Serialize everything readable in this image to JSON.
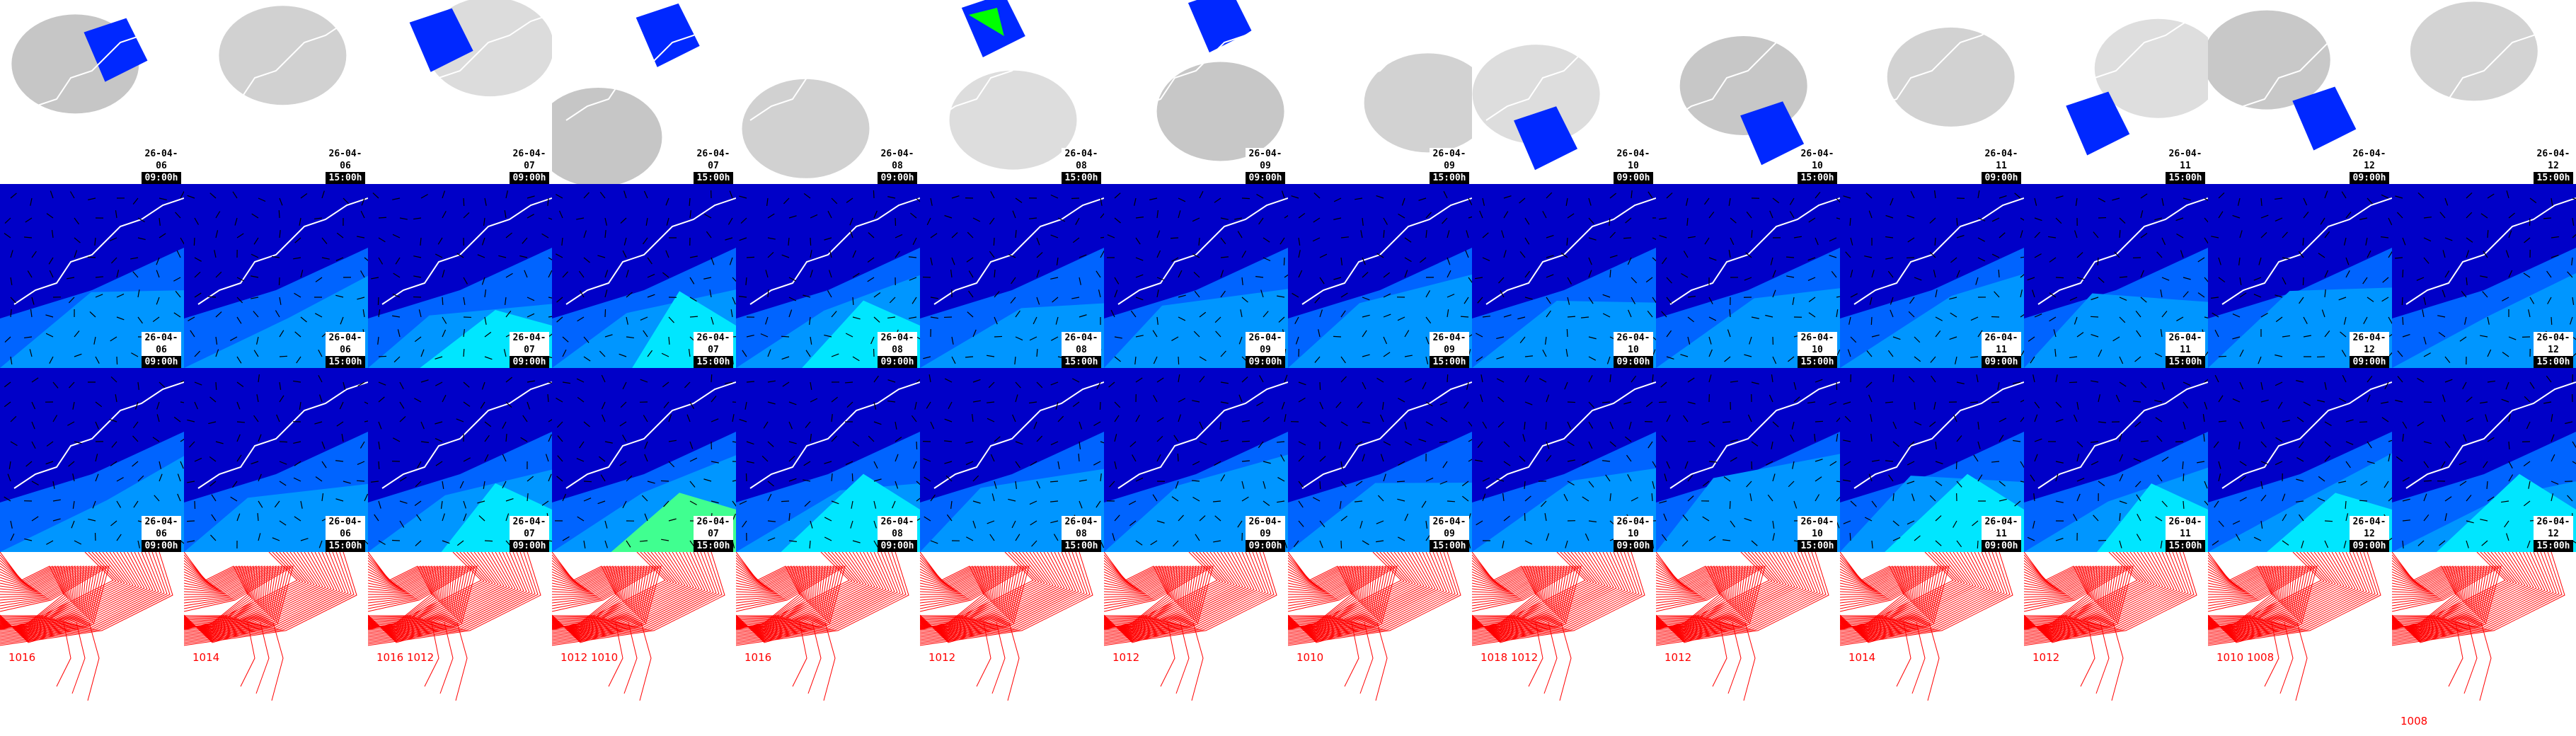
{
  "rows": [
    "cloud-precip",
    "wind-surface",
    "wind-upper",
    "pressure"
  ],
  "colors": {
    "dark_blue": "#0000c8",
    "mid_blue": "#0064ff",
    "light_blue": "#0096ff",
    "cyan": "#00ffff",
    "green": "#00ff00",
    "contour_red": "#ff0000",
    "cloud_gray": "#bdbdbd"
  },
  "panels": [
    {
      "date": "26-04-06",
      "time": "09:00h",
      "isobar": "1016"
    },
    {
      "date": "26-04-06",
      "time": "15:00h",
      "isobar": "1014"
    },
    {
      "date": "26-04-07",
      "time": "09:00h",
      "isobar": "1016 1012"
    },
    {
      "date": "26-04-07",
      "time": "15:00h",
      "isobar": "1012 1010"
    },
    {
      "date": "26-04-08",
      "time": "09:00h",
      "isobar": "1016"
    },
    {
      "date": "26-04-08",
      "time": "15:00h",
      "isobar": "1012"
    },
    {
      "date": "26-04-09",
      "time": "09:00h",
      "isobar": "1012"
    },
    {
      "date": "26-04-09",
      "time": "15:00h",
      "isobar": "1010"
    },
    {
      "date": "26-04-10",
      "time": "09:00h",
      "isobar": "1018 1012"
    },
    {
      "date": "26-04-10",
      "time": "15:00h",
      "isobar": "1012"
    },
    {
      "date": "26-04-11",
      "time": "09:00h",
      "isobar": "1014"
    },
    {
      "date": "26-04-11",
      "time": "15:00h",
      "isobar": "1012"
    },
    {
      "date": "26-04-12",
      "time": "09:00h",
      "isobar": "1010 1008"
    },
    {
      "date": "26-04-12",
      "time": "15:00h",
      "isobar": "1008"
    }
  ]
}
